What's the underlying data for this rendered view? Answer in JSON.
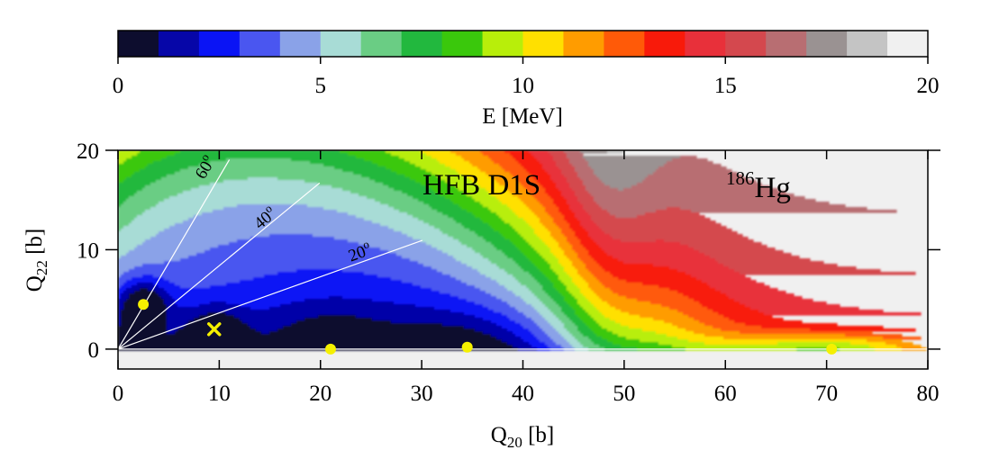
{
  "chart_data": [
    {
      "type": "colorbar",
      "label": "E [MeV]",
      "range": [
        0,
        20
      ],
      "ticks": [
        "0",
        "5",
        "10",
        "15",
        "20"
      ],
      "levels": [
        0,
        1,
        2,
        3,
        4,
        5,
        6,
        7,
        8,
        9,
        10,
        11,
        12,
        13,
        14,
        15,
        16,
        17,
        18,
        19,
        20
      ],
      "colors": [
        "#0d0d2e",
        "#0606a8",
        "#0a14f5",
        "#4a56f0",
        "#8aa2e8",
        "#a8dcd6",
        "#6acd84",
        "#22b83e",
        "#3ac80c",
        "#b8ee0a",
        "#ffe000",
        "#ff9c00",
        "#ff5a08",
        "#f81a0a",
        "#e8303a",
        "#d4484e",
        "#b86e72",
        "#9a9292",
        "#c4c4c4",
        "#f0f0f0"
      ]
    },
    {
      "type": "heatmap",
      "title": "HFB D1S",
      "nucleus": {
        "mass": "186",
        "symbol": "Hg"
      },
      "xlabel": {
        "main": "Q",
        "sub": "20",
        "unit": " [b]"
      },
      "ylabel": {
        "main": "Q",
        "sub": "22",
        "unit": " [b]"
      },
      "xlim": [
        0,
        80
      ],
      "ylim": [
        -2,
        20
      ],
      "xticks": [
        "0",
        "10",
        "20",
        "30",
        "40",
        "50",
        "60",
        "70",
        "80"
      ],
      "yticks": [
        "0",
        "10",
        "20"
      ],
      "angle_lines": [
        {
          "label": "60",
          "degree_symbol": "o",
          "angle": 60
        },
        {
          "label": "40",
          "degree_symbol": "o",
          "angle": 40
        },
        {
          "label": "20",
          "degree_symbol": "o",
          "angle": 20
        }
      ],
      "minima": [
        {
          "q20": 2.5,
          "q22": 4.5,
          "marker": "dot"
        },
        {
          "q20": 21,
          "q22": 0,
          "marker": "dot"
        },
        {
          "q20": 34.5,
          "q22": 0.2,
          "marker": "dot"
        },
        {
          "q20": 70.5,
          "q22": 0,
          "marker": "dot"
        },
        {
          "q20": 9.5,
          "q22": 2,
          "marker": "cross"
        }
      ],
      "marker_color": "#f5f000",
      "energy_surface_description": "energy rises from deep minima (about 0 MeV) near small Q20 toward 20 MeV along the upper-left ridge; a valley runs along Q22=0 to large Q20"
    }
  ]
}
